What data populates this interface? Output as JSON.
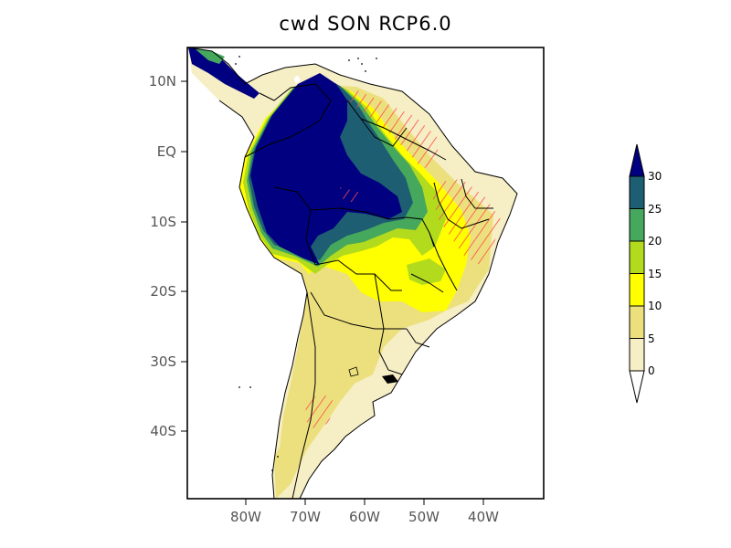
{
  "title": "cwd SON RCP6.0",
  "lat_labels": [
    "10N",
    "EQ",
    "10S",
    "20S",
    "30S",
    "40S"
  ],
  "lon_labels": [
    "80W",
    "70W",
    "60W",
    "50W",
    "40W"
  ],
  "colorbar": {
    "labels": [
      "30",
      "25",
      "20",
      "15",
      "10",
      "5",
      "0"
    ],
    "colors": [
      "#1d5e72",
      "#46a85c",
      "#b3db1e",
      "#ffff00",
      "#ece07e",
      "#f6eec4"
    ],
    "top_arrow_color": "#000080",
    "bottom_arrow_color": "#ffffff"
  },
  "map_colors": {
    "c0": "#f6eec4",
    "c5": "#ece07e",
    "c10": "#ffff00",
    "c15": "#b3db1e",
    "c20": "#46a85c",
    "c25": "#1d5e72",
    "c30": "#000080",
    "hatch": "#ff4a4a"
  }
}
